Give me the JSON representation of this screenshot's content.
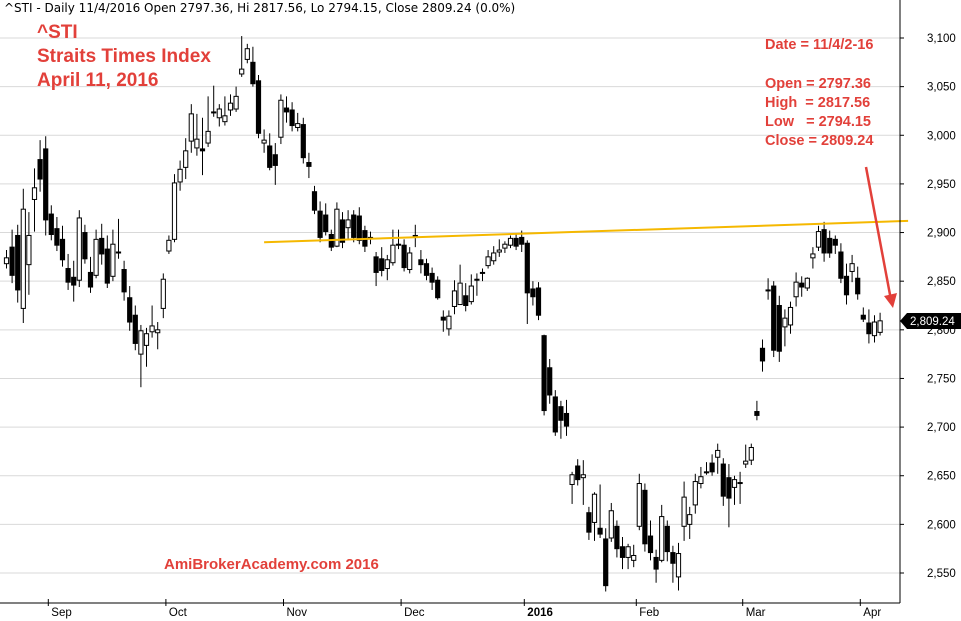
{
  "header": {
    "text": "^STI - Daily 11/4/2016 Open 2797.36, Hi 2817.56, Lo 2794.15, Close 2809.24 (0.0%)"
  },
  "annotations": {
    "title_lines": [
      "^STI",
      "Straits Times Index",
      "April 11, 2016"
    ],
    "date_label": "Date = 11/4/2-16",
    "ohlc_lines": [
      "Open = 2797.36",
      "High  = 2817.56",
      "Low   = 2794.15",
      "Close = 2809.24"
    ],
    "watermark": "AmiBrokerAcademy.com  2016",
    "last_price_tag": "2,809.24"
  },
  "colors": {
    "annotation_red": "#e2403a",
    "trendline": "#f5b800",
    "candle": "#000000",
    "grid": "#d9d9d9"
  },
  "chart_data": {
    "type": "candlestick",
    "y_axis_ticks": [
      "3,100",
      "3,050",
      "3,000",
      "2,950",
      "2,900",
      "2,850",
      "2,800",
      "2,750",
      "2,700",
      "2,650",
      "2,600",
      "2,550"
    ],
    "y_tick_values": [
      3100,
      3050,
      3000,
      2950,
      2900,
      2850,
      2800,
      2750,
      2700,
      2650,
      2600,
      2550
    ],
    "ylim": [
      2525,
      3140
    ],
    "x_axis_labels": [
      "Sep",
      "Oct",
      "Nov",
      "Dec",
      "2016",
      "Feb",
      "Mar",
      "Apr"
    ],
    "x_label_bar_index": [
      8,
      29,
      50,
      71,
      93,
      113,
      132,
      153
    ],
    "grid": "horizontal",
    "trendline": {
      "start_bar": 46,
      "start_value": 2890,
      "end_bar": 161,
      "end_value": 2912
    },
    "last_close": 2809.24,
    "candles": [
      {
        "o": 2868,
        "h": 2882,
        "l": 2863,
        "c": 2874
      },
      {
        "o": 2885,
        "h": 2903,
        "l": 2848,
        "c": 2856
      },
      {
        "o": 2897,
        "h": 2908,
        "l": 2828,
        "c": 2841
      },
      {
        "o": 2822,
        "h": 2945,
        "l": 2807,
        "c": 2924
      },
      {
        "o": 2867,
        "h": 2921,
        "l": 2836,
        "c": 2897
      },
      {
        "o": 2934,
        "h": 2966,
        "l": 2901,
        "c": 2946
      },
      {
        "o": 2975,
        "h": 2995,
        "l": 2942,
        "c": 2955
      },
      {
        "o": 2986,
        "h": 2999,
        "l": 2897,
        "c": 2913
      },
      {
        "o": 2919,
        "h": 2928,
        "l": 2892,
        "c": 2898
      },
      {
        "o": 2904,
        "h": 2916,
        "l": 2881,
        "c": 2887
      },
      {
        "o": 2893,
        "h": 2907,
        "l": 2865,
        "c": 2872
      },
      {
        "o": 2863,
        "h": 2878,
        "l": 2841,
        "c": 2849
      },
      {
        "o": 2854,
        "h": 2871,
        "l": 2829,
        "c": 2846
      },
      {
        "o": 2851,
        "h": 2923,
        "l": 2844,
        "c": 2915
      },
      {
        "o": 2900,
        "h": 2908,
        "l": 2868,
        "c": 2873
      },
      {
        "o": 2859,
        "h": 2875,
        "l": 2838,
        "c": 2844
      },
      {
        "o": 2856,
        "h": 2903,
        "l": 2853,
        "c": 2893
      },
      {
        "o": 2894,
        "h": 2909,
        "l": 2867,
        "c": 2878
      },
      {
        "o": 2883,
        "h": 2897,
        "l": 2843,
        "c": 2848
      },
      {
        "o": 2855,
        "h": 2903,
        "l": 2850,
        "c": 2888
      },
      {
        "o": 2880,
        "h": 2914,
        "l": 2873,
        "c": 2880
      },
      {
        "o": 2862,
        "h": 2871,
        "l": 2830,
        "c": 2839
      },
      {
        "o": 2833,
        "h": 2845,
        "l": 2799,
        "c": 2808
      },
      {
        "o": 2815,
        "h": 2825,
        "l": 2779,
        "c": 2786
      },
      {
        "o": 2775,
        "h": 2805,
        "l": 2741,
        "c": 2799
      },
      {
        "o": 2784,
        "h": 2802,
        "l": 2762,
        "c": 2796
      },
      {
        "o": 2798,
        "h": 2825,
        "l": 2792,
        "c": 2804
      },
      {
        "o": 2797,
        "h": 2808,
        "l": 2780,
        "c": 2800
      },
      {
        "o": 2822,
        "h": 2858,
        "l": 2812,
        "c": 2852
      },
      {
        "o": 2881,
        "h": 2897,
        "l": 2878,
        "c": 2892
      },
      {
        "o": 2893,
        "h": 2960,
        "l": 2890,
        "c": 2951
      },
      {
        "o": 2952,
        "h": 2974,
        "l": 2943,
        "c": 2965
      },
      {
        "o": 2967,
        "h": 2997,
        "l": 2955,
        "c": 2984
      },
      {
        "o": 2994,
        "h": 3032,
        "l": 2982,
        "c": 3022
      },
      {
        "o": 2987,
        "h": 3022,
        "l": 2979,
        "c": 2996
      },
      {
        "o": 2986,
        "h": 3018,
        "l": 2959,
        "c": 2984
      },
      {
        "o": 2992,
        "h": 3040,
        "l": 2988,
        "c": 3004
      },
      {
        "o": 3024,
        "h": 3051,
        "l": 3019,
        "c": 3024
      },
      {
        "o": 3018,
        "h": 3032,
        "l": 3009,
        "c": 3027
      },
      {
        "o": 3014,
        "h": 3040,
        "l": 3010,
        "c": 3020
      },
      {
        "o": 3026,
        "h": 3042,
        "l": 3020,
        "c": 3033
      },
      {
        "o": 3027,
        "h": 3050,
        "l": 3024,
        "c": 3040
      },
      {
        "o": 3063,
        "h": 3102,
        "l": 3060,
        "c": 3068
      },
      {
        "o": 3078,
        "h": 3094,
        "l": 3074,
        "c": 3089
      },
      {
        "o": 3075,
        "h": 3091,
        "l": 3050,
        "c": 3053
      },
      {
        "o": 3056,
        "h": 3062,
        "l": 2997,
        "c": 3002
      },
      {
        "o": 2992,
        "h": 3006,
        "l": 2982,
        "c": 2995
      },
      {
        "o": 2989,
        "h": 3002,
        "l": 2964,
        "c": 2967
      },
      {
        "o": 2980,
        "h": 2992,
        "l": 2949,
        "c": 2969
      },
      {
        "o": 2998,
        "h": 3042,
        "l": 2991,
        "c": 3036
      },
      {
        "o": 3028,
        "h": 3040,
        "l": 3013,
        "c": 3024
      },
      {
        "o": 3026,
        "h": 3034,
        "l": 3004,
        "c": 3010
      },
      {
        "o": 3008,
        "h": 3023,
        "l": 3004,
        "c": 3012
      },
      {
        "o": 3011,
        "h": 3018,
        "l": 2971,
        "c": 2977
      },
      {
        "o": 2972,
        "h": 2982,
        "l": 2956,
        "c": 2968
      },
      {
        "o": 2942,
        "h": 2948,
        "l": 2919,
        "c": 2923
      },
      {
        "o": 2922,
        "h": 2932,
        "l": 2890,
        "c": 2895
      },
      {
        "o": 2918,
        "h": 2930,
        "l": 2897,
        "c": 2901
      },
      {
        "o": 2898,
        "h": 2903,
        "l": 2881,
        "c": 2885
      },
      {
        "o": 2886,
        "h": 2931,
        "l": 2885,
        "c": 2924
      },
      {
        "o": 2913,
        "h": 2921,
        "l": 2884,
        "c": 2890
      },
      {
        "o": 2905,
        "h": 2923,
        "l": 2892,
        "c": 2913
      },
      {
        "o": 2918,
        "h": 2923,
        "l": 2890,
        "c": 2895
      },
      {
        "o": 2917,
        "h": 2926,
        "l": 2888,
        "c": 2892
      },
      {
        "o": 2902,
        "h": 2907,
        "l": 2880,
        "c": 2886
      },
      {
        "o": 2895,
        "h": 2901,
        "l": 2888,
        "c": 2894
      },
      {
        "o": 2875,
        "h": 2880,
        "l": 2845,
        "c": 2859
      },
      {
        "o": 2873,
        "h": 2885,
        "l": 2855,
        "c": 2861
      },
      {
        "o": 2863,
        "h": 2877,
        "l": 2851,
        "c": 2872
      },
      {
        "o": 2869,
        "h": 2903,
        "l": 2866,
        "c": 2887
      },
      {
        "o": 2888,
        "h": 2903,
        "l": 2883,
        "c": 2888
      },
      {
        "o": 2887,
        "h": 2893,
        "l": 2860,
        "c": 2864
      },
      {
        "o": 2862,
        "h": 2885,
        "l": 2858,
        "c": 2879
      },
      {
        "o": 2896,
        "h": 2908,
        "l": 2885,
        "c": 2897
      },
      {
        "o": 2872,
        "h": 2882,
        "l": 2858,
        "c": 2867
      },
      {
        "o": 2868,
        "h": 2873,
        "l": 2851,
        "c": 2856
      },
      {
        "o": 2858,
        "h": 2864,
        "l": 2841,
        "c": 2849
      },
      {
        "o": 2851,
        "h": 2855,
        "l": 2831,
        "c": 2833
      },
      {
        "o": 2813,
        "h": 2820,
        "l": 2798,
        "c": 2810
      },
      {
        "o": 2801,
        "h": 2820,
        "l": 2794,
        "c": 2814
      },
      {
        "o": 2824,
        "h": 2851,
        "l": 2816,
        "c": 2840
      },
      {
        "o": 2826,
        "h": 2867,
        "l": 2826,
        "c": 2848
      },
      {
        "o": 2835,
        "h": 2848,
        "l": 2819,
        "c": 2825
      },
      {
        "o": 2829,
        "h": 2857,
        "l": 2826,
        "c": 2845
      },
      {
        "o": 2852,
        "h": 2858,
        "l": 2835,
        "c": 2852
      },
      {
        "o": 2859,
        "h": 2863,
        "l": 2850,
        "c": 2859
      },
      {
        "o": 2866,
        "h": 2882,
        "l": 2863,
        "c": 2875
      },
      {
        "o": 2871,
        "h": 2886,
        "l": 2867,
        "c": 2879
      },
      {
        "o": 2880,
        "h": 2893,
        "l": 2875,
        "c": 2882
      },
      {
        "o": 2884,
        "h": 2891,
        "l": 2879,
        "c": 2888
      },
      {
        "o": 2887,
        "h": 2897,
        "l": 2884,
        "c": 2894
      },
      {
        "o": 2894,
        "h": 2898,
        "l": 2882,
        "c": 2886
      },
      {
        "o": 2895,
        "h": 2902,
        "l": 2880,
        "c": 2888
      },
      {
        "o": 2889,
        "h": 2892,
        "l": 2806,
        "c": 2838
      },
      {
        "o": 2842,
        "h": 2850,
        "l": 2825,
        "c": 2834
      },
      {
        "o": 2843,
        "h": 2849,
        "l": 2810,
        "c": 2815
      },
      {
        "o": 2794,
        "h": 2795,
        "l": 2712,
        "c": 2717
      },
      {
        "o": 2761,
        "h": 2770,
        "l": 2724,
        "c": 2733
      },
      {
        "o": 2731,
        "h": 2738,
        "l": 2691,
        "c": 2695
      },
      {
        "o": 2721,
        "h": 2727,
        "l": 2688,
        "c": 2707
      },
      {
        "o": 2714,
        "h": 2728,
        "l": 2691,
        "c": 2701
      },
      {
        "o": 2641,
        "h": 2654,
        "l": 2621,
        "c": 2651
      },
      {
        "o": 2660,
        "h": 2667,
        "l": 2640,
        "c": 2646
      },
      {
        "o": 2648,
        "h": 2666,
        "l": 2620,
        "c": 2651
      },
      {
        "o": 2612,
        "h": 2618,
        "l": 2584,
        "c": 2592
      },
      {
        "o": 2602,
        "h": 2633,
        "l": 2583,
        "c": 2631
      },
      {
        "o": 2596,
        "h": 2641,
        "l": 2586,
        "c": 2590
      },
      {
        "o": 2585,
        "h": 2596,
        "l": 2531,
        "c": 2537
      },
      {
        "o": 2586,
        "h": 2622,
        "l": 2582,
        "c": 2614
      },
      {
        "o": 2598,
        "h": 2604,
        "l": 2566,
        "c": 2575
      },
      {
        "o": 2577,
        "h": 2587,
        "l": 2554,
        "c": 2566
      },
      {
        "o": 2566,
        "h": 2580,
        "l": 2554,
        "c": 2577
      },
      {
        "o": 2563,
        "h": 2579,
        "l": 2556,
        "c": 2568
      },
      {
        "o": 2598,
        "h": 2652,
        "l": 2594,
        "c": 2642
      },
      {
        "o": 2635,
        "h": 2642,
        "l": 2572,
        "c": 2580
      },
      {
        "o": 2588,
        "h": 2604,
        "l": 2563,
        "c": 2571
      },
      {
        "o": 2566,
        "h": 2574,
        "l": 2540,
        "c": 2554
      },
      {
        "o": 2563,
        "h": 2620,
        "l": 2561,
        "c": 2608
      },
      {
        "o": 2598,
        "h": 2604,
        "l": 2562,
        "c": 2572
      },
      {
        "o": 2571,
        "h": 2578,
        "l": 2540,
        "c": 2560
      },
      {
        "o": 2546,
        "h": 2581,
        "l": 2532,
        "c": 2570
      },
      {
        "o": 2598,
        "h": 2644,
        "l": 2583,
        "c": 2628
      },
      {
        "o": 2600,
        "h": 2618,
        "l": 2585,
        "c": 2610
      },
      {
        "o": 2620,
        "h": 2652,
        "l": 2611,
        "c": 2644
      },
      {
        "o": 2642,
        "h": 2659,
        "l": 2637,
        "c": 2649
      },
      {
        "o": 2653,
        "h": 2664,
        "l": 2651,
        "c": 2654
      },
      {
        "o": 2663,
        "h": 2672,
        "l": 2650,
        "c": 2654
      },
      {
        "o": 2669,
        "h": 2683,
        "l": 2652,
        "c": 2676
      },
      {
        "o": 2662,
        "h": 2668,
        "l": 2619,
        "c": 2629
      },
      {
        "o": 2648,
        "h": 2662,
        "l": 2597,
        "c": 2627
      },
      {
        "o": 2638,
        "h": 2650,
        "l": 2620,
        "c": 2646
      },
      {
        "o": 2643,
        "h": 2654,
        "l": 2621,
        "c": 2642
      },
      {
        "o": 2662,
        "h": 2682,
        "l": 2658,
        "c": 2665
      },
      {
        "o": 2666,
        "h": 2683,
        "l": 2661,
        "c": 2679
      },
      {
        "o": 2716,
        "h": 2727,
        "l": 2707,
        "c": 2712
      },
      {
        "o": 2781,
        "h": 2790,
        "l": 2757,
        "c": 2768
      },
      {
        "o": 2841,
        "h": 2853,
        "l": 2831,
        "c": 2840
      },
      {
        "o": 2845,
        "h": 2850,
        "l": 2772,
        "c": 2779
      },
      {
        "o": 2825,
        "h": 2835,
        "l": 2767,
        "c": 2778
      },
      {
        "o": 2803,
        "h": 2821,
        "l": 2783,
        "c": 2812
      },
      {
        "o": 2805,
        "h": 2829,
        "l": 2796,
        "c": 2823
      },
      {
        "o": 2834,
        "h": 2859,
        "l": 2824,
        "c": 2849
      },
      {
        "o": 2848,
        "h": 2855,
        "l": 2834,
        "c": 2844
      },
      {
        "o": 2843,
        "h": 2854,
        "l": 2840,
        "c": 2853
      },
      {
        "o": 2874,
        "h": 2885,
        "l": 2863,
        "c": 2878
      },
      {
        "o": 2885,
        "h": 2907,
        "l": 2881,
        "c": 2901
      },
      {
        "o": 2903,
        "h": 2911,
        "l": 2870,
        "c": 2879
      },
      {
        "o": 2894,
        "h": 2902,
        "l": 2874,
        "c": 2879
      },
      {
        "o": 2893,
        "h": 2897,
        "l": 2878,
        "c": 2887
      },
      {
        "o": 2880,
        "h": 2889,
        "l": 2848,
        "c": 2853
      },
      {
        "o": 2855,
        "h": 2868,
        "l": 2826,
        "c": 2836
      },
      {
        "o": 2860,
        "h": 2877,
        "l": 2849,
        "c": 2868
      },
      {
        "o": 2853,
        "h": 2865,
        "l": 2831,
        "c": 2837
      },
      {
        "o": 2815,
        "h": 2823,
        "l": 2808,
        "c": 2811
      },
      {
        "o": 2807,
        "h": 2821,
        "l": 2786,
        "c": 2796
      },
      {
        "o": 2794,
        "h": 2815,
        "l": 2787,
        "c": 2808
      },
      {
        "o": 2797.36,
        "h": 2817.56,
        "l": 2794.15,
        "c": 2809.24
      }
    ]
  }
}
